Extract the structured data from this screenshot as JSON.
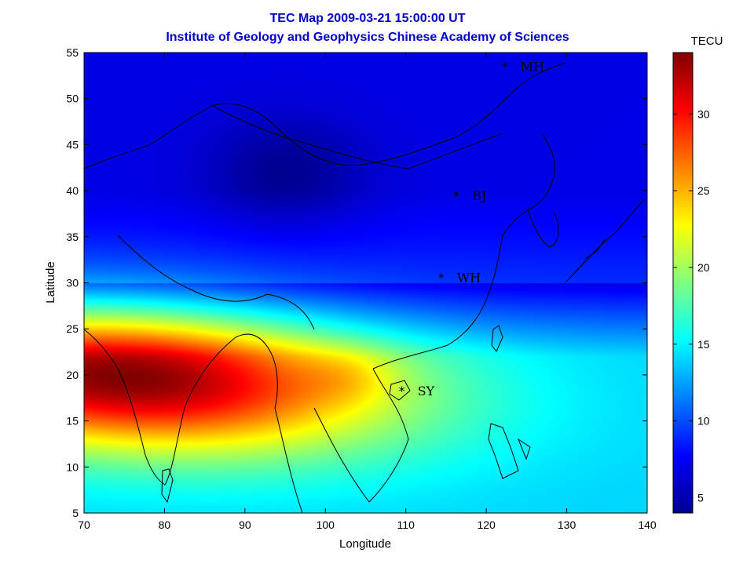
{
  "title_line1": "TEC Map 2009-03-21 15:00:00 UT",
  "title_line2": "Institute of Geology and Geophysics Chinese Academy of Sciences",
  "chart_data": {
    "type": "heatmap",
    "xlabel": "Longitude",
    "ylabel": "Latitude",
    "xlim": [
      70,
      140
    ],
    "ylim": [
      5,
      55
    ],
    "x_ticks": [
      "70",
      "80",
      "90",
      "100",
      "110",
      "120",
      "130",
      "140"
    ],
    "y_ticks": [
      "5",
      "10",
      "15",
      "20",
      "25",
      "30",
      "35",
      "40",
      "45",
      "50",
      "55"
    ],
    "colorbar": {
      "label": "TECU",
      "range": [
        4,
        34
      ],
      "ticks": [
        "5",
        "10",
        "15",
        "20",
        "25",
        "30"
      ],
      "colormap": "jet"
    },
    "field_description_values": {
      "anomaly_crest_lat": 20,
      "anomaly_peak_lon": 75,
      "anomaly_peak_tecu": 34,
      "background_north_tecu": 7,
      "background_south_tecu": 14
    },
    "stations": [
      {
        "name": "MH",
        "lon": 122.3,
        "lat": 53.5
      },
      {
        "name": "BJ",
        "lon": 116.3,
        "lat": 39.5
      },
      {
        "name": "WH",
        "lon": 114.4,
        "lat": 30.6
      },
      {
        "name": "SY",
        "lon": 109.5,
        "lat": 18.3
      }
    ]
  }
}
